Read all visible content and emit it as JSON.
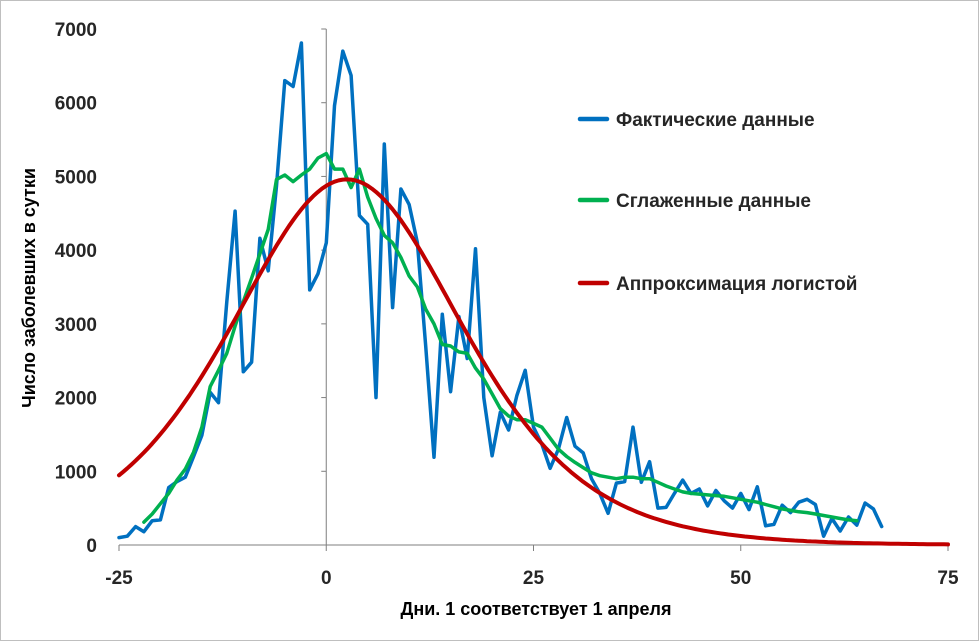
{
  "chart_data": {
    "type": "line",
    "xlabel": "Дни. 1 соответствует 1 апреля",
    "ylabel": "Число заболевших в сутки",
    "xlim": [
      -25,
      75
    ],
    "ylim": [
      0,
      7000
    ],
    "x_ticks": [
      -25,
      0,
      25,
      50,
      75
    ],
    "y_ticks": [
      0,
      1000,
      2000,
      3000,
      4000,
      5000,
      6000,
      7000
    ],
    "grid": false,
    "legend_position": "top-right",
    "series": [
      {
        "name": "Фактические данные",
        "color": "#0070C0",
        "points": [
          [
            -25,
            100
          ],
          [
            -24,
            120
          ],
          [
            -23,
            250
          ],
          [
            -22,
            180
          ],
          [
            -21,
            330
          ],
          [
            -20,
            340
          ],
          [
            -19,
            780
          ],
          [
            -18,
            860
          ],
          [
            -17,
            920
          ],
          [
            -16,
            1200
          ],
          [
            -15,
            1490
          ],
          [
            -14,
            2070
          ],
          [
            -13,
            1930
          ],
          [
            -12,
            3300
          ],
          [
            -11,
            4530
          ],
          [
            -10,
            2350
          ],
          [
            -9,
            2480
          ],
          [
            -8,
            4160
          ],
          [
            -7,
            3720
          ],
          [
            -6,
            4870
          ],
          [
            -5,
            6300
          ],
          [
            -4,
            6220
          ],
          [
            -3,
            6810
          ],
          [
            -2,
            3460
          ],
          [
            -1,
            3680
          ],
          [
            0,
            4100
          ],
          [
            1,
            5960
          ],
          [
            2,
            6700
          ],
          [
            3,
            6370
          ],
          [
            4,
            4470
          ],
          [
            5,
            4350
          ],
          [
            6,
            2000
          ],
          [
            7,
            5440
          ],
          [
            8,
            3220
          ],
          [
            9,
            4830
          ],
          [
            10,
            4620
          ],
          [
            11,
            4100
          ],
          [
            12,
            2700
          ],
          [
            13,
            1190
          ],
          [
            14,
            3130
          ],
          [
            15,
            2080
          ],
          [
            16,
            3100
          ],
          [
            17,
            2530
          ],
          [
            18,
            4020
          ],
          [
            19,
            2000
          ],
          [
            20,
            1210
          ],
          [
            21,
            1800
          ],
          [
            22,
            1560
          ],
          [
            23,
            2030
          ],
          [
            24,
            2370
          ],
          [
            25,
            1600
          ],
          [
            26,
            1370
          ],
          [
            27,
            1040
          ],
          [
            28,
            1300
          ],
          [
            29,
            1730
          ],
          [
            30,
            1340
          ],
          [
            31,
            1250
          ],
          [
            32,
            900
          ],
          [
            33,
            700
          ],
          [
            34,
            430
          ],
          [
            35,
            840
          ],
          [
            36,
            860
          ],
          [
            37,
            1600
          ],
          [
            38,
            850
          ],
          [
            39,
            1130
          ],
          [
            40,
            500
          ],
          [
            41,
            510
          ],
          [
            42,
            700
          ],
          [
            43,
            880
          ],
          [
            44,
            700
          ],
          [
            45,
            760
          ],
          [
            46,
            530
          ],
          [
            47,
            740
          ],
          [
            48,
            600
          ],
          [
            49,
            500
          ],
          [
            50,
            700
          ],
          [
            51,
            480
          ],
          [
            52,
            790
          ],
          [
            53,
            260
          ],
          [
            54,
            280
          ],
          [
            55,
            540
          ],
          [
            56,
            440
          ],
          [
            57,
            580
          ],
          [
            58,
            620
          ],
          [
            59,
            550
          ],
          [
            60,
            120
          ],
          [
            61,
            360
          ],
          [
            62,
            190
          ],
          [
            63,
            380
          ],
          [
            64,
            270
          ],
          [
            65,
            570
          ],
          [
            66,
            490
          ],
          [
            67,
            250
          ]
        ]
      },
      {
        "name": "Сглаженные данные",
        "color": "#00B050",
        "points": [
          [
            -22,
            310
          ],
          [
            -21,
            420
          ],
          [
            -20,
            560
          ],
          [
            -19,
            700
          ],
          [
            -18,
            880
          ],
          [
            -17,
            1030
          ],
          [
            -16,
            1260
          ],
          [
            -15,
            1600
          ],
          [
            -14,
            2150
          ],
          [
            -13,
            2370
          ],
          [
            -12,
            2600
          ],
          [
            -11,
            2970
          ],
          [
            -10,
            3300
          ],
          [
            -9,
            3620
          ],
          [
            -8,
            3950
          ],
          [
            -7,
            4280
          ],
          [
            -6,
            4960
          ],
          [
            -5,
            5020
          ],
          [
            -4,
            4930
          ],
          [
            -3,
            5020
          ],
          [
            -2,
            5100
          ],
          [
            -1,
            5250
          ],
          [
            0,
            5310
          ],
          [
            1,
            5100
          ],
          [
            2,
            5100
          ],
          [
            3,
            4850
          ],
          [
            4,
            5100
          ],
          [
            5,
            4720
          ],
          [
            6,
            4430
          ],
          [
            7,
            4200
          ],
          [
            8,
            4100
          ],
          [
            9,
            3900
          ],
          [
            10,
            3650
          ],
          [
            11,
            3500
          ],
          [
            12,
            3200
          ],
          [
            13,
            3000
          ],
          [
            14,
            2720
          ],
          [
            15,
            2700
          ],
          [
            16,
            2620
          ],
          [
            17,
            2600
          ],
          [
            18,
            2400
          ],
          [
            19,
            2250
          ],
          [
            20,
            2050
          ],
          [
            21,
            1850
          ],
          [
            22,
            1750
          ],
          [
            23,
            1700
          ],
          [
            24,
            1700
          ],
          [
            25,
            1650
          ],
          [
            26,
            1600
          ],
          [
            27,
            1450
          ],
          [
            28,
            1300
          ],
          [
            29,
            1200
          ],
          [
            30,
            1120
          ],
          [
            31,
            1050
          ],
          [
            32,
            980
          ],
          [
            33,
            940
          ],
          [
            34,
            920
          ],
          [
            35,
            900
          ],
          [
            36,
            920
          ],
          [
            37,
            920
          ],
          [
            38,
            900
          ],
          [
            39,
            900
          ],
          [
            40,
            850
          ],
          [
            41,
            800
          ],
          [
            42,
            760
          ],
          [
            43,
            720
          ],
          [
            44,
            700
          ],
          [
            45,
            690
          ],
          [
            46,
            680
          ],
          [
            47,
            670
          ],
          [
            48,
            660
          ],
          [
            49,
            640
          ],
          [
            50,
            620
          ],
          [
            51,
            600
          ],
          [
            52,
            580
          ],
          [
            53,
            550
          ],
          [
            54,
            520
          ],
          [
            55,
            490
          ],
          [
            56,
            470
          ],
          [
            57,
            450
          ],
          [
            58,
            440
          ],
          [
            59,
            420
          ],
          [
            60,
            400
          ],
          [
            61,
            380
          ],
          [
            62,
            360
          ],
          [
            63,
            340
          ],
          [
            64,
            330
          ]
        ]
      },
      {
        "name": "Аппроксимация логистой",
        "color": "#C00000",
        "function": "logistic_derivative",
        "peak_x": 2.5,
        "peak_y": 4960,
        "scale": 9.35,
        "x_range": [
          -25,
          75
        ]
      }
    ]
  }
}
